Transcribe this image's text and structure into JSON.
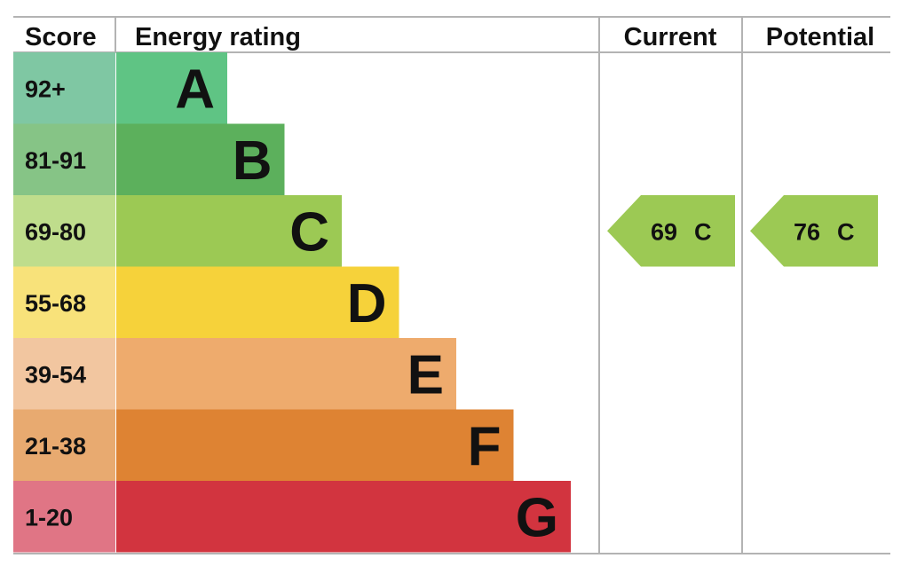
{
  "headers": {
    "score": "Score",
    "energy_rating": "Energy rating",
    "current": "Current",
    "potential": "Potential"
  },
  "chart_data": {
    "type": "bar",
    "categories": [
      "A",
      "B",
      "C",
      "D",
      "E",
      "F",
      "G"
    ],
    "bands": [
      {
        "letter": "A",
        "range": "92+",
        "min": 92,
        "max": 100,
        "color": "#5fc484",
        "score_color": "#7fc7a3"
      },
      {
        "letter": "B",
        "range": "81-91",
        "min": 81,
        "max": 91,
        "color": "#5cb05c",
        "score_color": "#86c486"
      },
      {
        "letter": "C",
        "range": "69-80",
        "min": 69,
        "max": 80,
        "color": "#9cc954",
        "score_color": "#bfdd8c"
      },
      {
        "letter": "D",
        "range": "55-68",
        "min": 55,
        "max": 68,
        "color": "#f6d23a",
        "score_color": "#f8e27a"
      },
      {
        "letter": "E",
        "range": "39-54",
        "min": 39,
        "max": 54,
        "color": "#eeab6d",
        "score_color": "#f2c6a0"
      },
      {
        "letter": "F",
        "range": "21-38",
        "min": 21,
        "max": 38,
        "color": "#de8333",
        "score_color": "#e8aa70"
      },
      {
        "letter": "G",
        "range": "1-20",
        "min": 1,
        "max": 20,
        "color": "#d2343f",
        "score_color": "#e07585"
      }
    ],
    "current": {
      "value": 69,
      "band": "C",
      "label_value": "69",
      "label_band": "C",
      "color": "#9cc954"
    },
    "potential": {
      "value": 76,
      "band": "C",
      "label_value": "76",
      "label_band": "C",
      "color": "#9cc954"
    }
  }
}
